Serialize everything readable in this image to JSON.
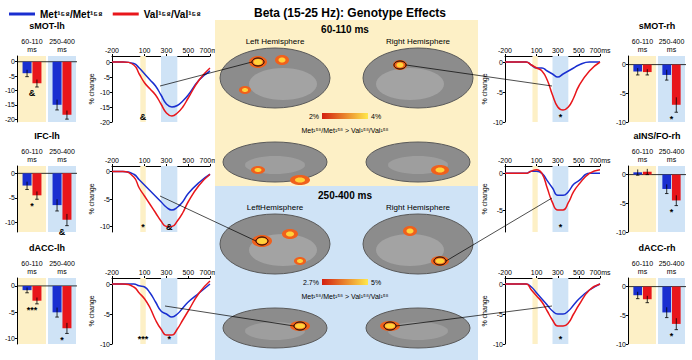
{
  "title": "Beta (15-25 Hz): Genotype Effects",
  "legend": "top-left",
  "windows": [
    {
      "from": 60,
      "to": 110,
      "color": "#fdf0c6"
    },
    {
      "from": 250,
      "to": 400,
      "color": "#cfe3f6"
    }
  ],
  "brain": {
    "bands": [
      {
        "label": "60-110 ms",
        "left": "Left Hemisphere",
        "right": "Right Hemisphere",
        "contrast": "Met¹⁵⁸/Met¹⁵⁸ > Val¹⁵⁸/Val¹⁵⁸",
        "colorbar": {
          "ticks": [
            {
              "value": 2,
              "label": "2%"
            },
            {
              "value": 4,
              "label": "4%"
            }
          ]
        }
      },
      {
        "label": "250-400 ms",
        "left": "LeftHemisphere",
        "right": "Right Hemisphere",
        "contrast": "Met¹⁵⁸/Met¹⁵⁸ > Val¹⁵⁸/Val¹⁵⁸",
        "colorbar": {
          "ticks": [
            {
              "value": 2.7,
              "label": "2.7%"
            },
            {
              "value": 5,
              "label": "5%"
            }
          ]
        }
      }
    ]
  },
  "chart_data": [
    {
      "type": "bar",
      "title": "sMOT-lh",
      "categories": [
        "60-110 ms",
        "250-400 ms"
      ],
      "series": [
        {
          "name": "Met¹⁵⁸/Met¹⁵⁸",
          "color": "#1a2fd0",
          "values": [
            -4,
            -15
          ],
          "errors": [
            1.2,
            1.8
          ]
        },
        {
          "name": "Val¹⁵⁸/Val¹⁵⁸",
          "color": "#e8161b",
          "values": [
            -7.5,
            -18.5
          ],
          "errors": [
            1.3,
            1.5
          ]
        }
      ],
      "ylim": [
        -21,
        2
      ],
      "yticks": [
        0,
        -5,
        -10,
        -15,
        -20
      ],
      "grid": false,
      "annotations": [
        {
          "category": "60-110 ms",
          "text": "&"
        }
      ]
    },
    {
      "type": "line",
      "x": [
        -200,
        -100,
        0,
        50,
        100,
        150,
        200,
        250,
        300,
        350,
        400,
        450,
        500,
        600,
        700
      ],
      "series": [
        {
          "name": "Met¹⁵⁸/Met¹⁵⁸",
          "color": "#1a2fd0",
          "values": [
            0,
            0,
            -0.5,
            -2,
            -4,
            -6,
            -8,
            -11,
            -14,
            -15,
            -14.5,
            -13,
            -11,
            -6,
            -3
          ]
        },
        {
          "name": "Val¹⁵⁸/Val¹⁵⁸",
          "color": "#e8161b",
          "values": [
            0,
            0,
            -1,
            -4,
            -7,
            -9,
            -11,
            -14,
            -17,
            -18,
            -17,
            -15,
            -12,
            -6,
            -2
          ]
        }
      ],
      "xlim": [
        -200,
        700
      ],
      "xticks": [
        -200,
        100,
        300,
        500,
        {
          "value": 700,
          "label": "700ms"
        }
      ],
      "ylim": [
        -20,
        2
      ],
      "yticks": [
        0,
        -5,
        -10,
        -15,
        -20
      ],
      "ylabel": "% change",
      "grid": false,
      "annotations": [
        {
          "x": 85,
          "text": "&"
        }
      ]
    },
    {
      "type": "bar",
      "title": "IFC-lh",
      "categories": [
        "60-110 ms",
        "250-400 ms"
      ],
      "series": [
        {
          "name": "Met¹⁵⁸/Met¹⁵⁸",
          "color": "#1a2fd0",
          "values": [
            -2.5,
            -6.5
          ],
          "errors": [
            0.8,
            1.2
          ]
        },
        {
          "name": "Val¹⁵⁸/Val¹⁵⁸",
          "color": "#e8161b",
          "values": [
            -4.5,
            -9.5
          ],
          "errors": [
            0.8,
            1.2
          ]
        }
      ],
      "ylim": [
        -12,
        1.5
      ],
      "yticks": [
        0,
        -5,
        -10
      ],
      "grid": false,
      "annotations": [
        {
          "category": "60-110 ms",
          "text": "*"
        },
        {
          "category": "250-400 ms",
          "text": "&"
        }
      ]
    },
    {
      "type": "line",
      "x": [
        -200,
        -100,
        0,
        50,
        100,
        150,
        200,
        250,
        300,
        350,
        400,
        450,
        500,
        600,
        700
      ],
      "series": [
        {
          "name": "Met¹⁵⁸/Met¹⁵⁸",
          "color": "#1a2fd0",
          "values": [
            0,
            0,
            -0.5,
            -1.5,
            -2.5,
            -3.5,
            -4.5,
            -5.5,
            -6.5,
            -7,
            -6.5,
            -5.5,
            -4,
            -2,
            -0.5
          ]
        },
        {
          "name": "Val¹⁵⁸/Val¹⁵⁸",
          "color": "#e8161b",
          "values": [
            0,
            0,
            -1,
            -3,
            -4.5,
            -6,
            -7.5,
            -9,
            -10,
            -10,
            -9,
            -7.5,
            -5.5,
            -2.5,
            -0.5
          ]
        }
      ],
      "xlim": [
        -200,
        700
      ],
      "xticks": [
        -200,
        100,
        300,
        500,
        {
          "value": 700,
          "label": "700ms"
        }
      ],
      "ylim": [
        -11,
        1
      ],
      "yticks": [
        0,
        -5,
        -10
      ],
      "ylabel": "% change",
      "grid": false,
      "annotations": [
        {
          "x": 85,
          "text": "*"
        },
        {
          "x": 325,
          "text": "&"
        }
      ]
    },
    {
      "type": "bar",
      "title": "dACC-lh",
      "categories": [
        "60-110 ms",
        "250-400 ms"
      ],
      "series": [
        {
          "name": "Met¹⁵⁸/Met¹⁵⁸",
          "color": "#1a2fd0",
          "values": [
            -0.8,
            -5
          ],
          "errors": [
            0.5,
            0.9
          ]
        },
        {
          "name": "Val¹⁵⁸/Val¹⁵⁸",
          "color": "#e8161b",
          "values": [
            -2.8,
            -8
          ],
          "errors": [
            0.6,
            1
          ]
        }
      ],
      "ylim": [
        -11,
        1.5
      ],
      "yticks": [
        0,
        -5,
        -10
      ],
      "grid": false,
      "annotations": [
        {
          "category": "60-110 ms",
          "text": "***"
        },
        {
          "category": "250-400 ms",
          "text": "*"
        }
      ]
    },
    {
      "type": "line",
      "x": [
        -200,
        -100,
        0,
        50,
        100,
        150,
        200,
        250,
        300,
        350,
        400,
        450,
        500,
        600,
        700
      ],
      "series": [
        {
          "name": "Met¹⁵⁸/Met¹⁵⁸",
          "color": "#1a2fd0",
          "values": [
            0,
            0,
            0,
            -0.3,
            -0.5,
            -1.5,
            -3,
            -4.5,
            -5,
            -5.5,
            -5,
            -4,
            -3,
            -1.5,
            0
          ]
        },
        {
          "name": "Val¹⁵⁸/Val¹⁵⁸",
          "color": "#e8161b",
          "values": [
            0,
            0,
            -0.5,
            -1.5,
            -2.5,
            -4,
            -6,
            -7.5,
            -8.5,
            -8.5,
            -7.5,
            -6,
            -4.5,
            -1.5,
            0.5
          ]
        }
      ],
      "xlim": [
        -200,
        700
      ],
      "xticks": [
        -200,
        100,
        300,
        500,
        {
          "value": 700,
          "label": "700ms"
        }
      ],
      "ylim": [
        -10,
        1
      ],
      "yticks": [
        0,
        -5,
        -10
      ],
      "ylabel": "% change",
      "grid": false,
      "annotations": [
        {
          "x": 85,
          "text": "***"
        },
        {
          "x": 325,
          "text": "*"
        }
      ]
    },
    {
      "type": "bar",
      "title": "sMOT-rh",
      "categories": [
        "60-110 ms",
        "250-400 ms"
      ],
      "series": [
        {
          "name": "Met¹⁵⁸/Met¹⁵⁸",
          "color": "#1a2fd0",
          "values": [
            -1.2,
            -1.8
          ],
          "errors": [
            0.6,
            0.9
          ]
        },
        {
          "name": "Val¹⁵⁸/Val¹⁵⁸",
          "color": "#e8161b",
          "values": [
            -1.3,
            -7
          ],
          "errors": [
            0.5,
            1.3
          ]
        }
      ],
      "ylim": [
        -10,
        1.5
      ],
      "yticks": [
        0,
        -5,
        -10
      ],
      "grid": false,
      "annotations": [
        {
          "category": "250-400 ms",
          "text": "*"
        }
      ]
    },
    {
      "type": "line",
      "x": [
        -200,
        -100,
        0,
        50,
        100,
        150,
        200,
        250,
        300,
        350,
        400,
        450,
        500,
        600,
        700
      ],
      "series": [
        {
          "name": "Met¹⁵⁸/Met¹⁵⁸",
          "color": "#1a2fd0",
          "values": [
            0,
            0,
            0,
            -0.5,
            -1,
            -1,
            -1.5,
            -2,
            -2.5,
            -2,
            -1.5,
            -1,
            -0.5,
            0,
            0
          ]
        },
        {
          "name": "Val¹⁵⁸/Val¹⁵⁸",
          "color": "#e8161b",
          "values": [
            0,
            0,
            0,
            -0.5,
            -1,
            -1.5,
            -3,
            -5.5,
            -7.5,
            -8,
            -7.5,
            -6,
            -4,
            -1.5,
            0
          ]
        }
      ],
      "xlim": [
        -200,
        700
      ],
      "xticks": [
        -200,
        100,
        300,
        500,
        {
          "value": 700,
          "label": "700ms"
        }
      ],
      "ylim": [
        -10,
        1
      ],
      "yticks": [
        0,
        -5,
        -10
      ],
      "ylabel": "% change",
      "grid": false,
      "annotations": [
        {
          "x": 325,
          "text": "*"
        }
      ]
    },
    {
      "type": "bar",
      "title": "aINS/FO-rh",
      "categories": [
        "60-110 ms",
        "250-400 ms"
      ],
      "series": [
        {
          "name": "Met¹⁵⁸/Met¹⁵⁸",
          "color": "#1a2fd0",
          "values": [
            0.4,
            -2.5
          ],
          "errors": [
            0.5,
            0.8
          ]
        },
        {
          "name": "Val¹⁵⁸/Val¹⁵⁸",
          "color": "#e8161b",
          "values": [
            0.5,
            -4.5
          ],
          "errors": [
            0.5,
            0.9
          ]
        }
      ],
      "ylim": [
        -10,
        1.5
      ],
      "yticks": [
        0,
        -5,
        -10
      ],
      "grid": false,
      "annotations": [
        {
          "category": "250-400 ms",
          "text": "*"
        }
      ]
    },
    {
      "type": "line",
      "x": [
        -200,
        -100,
        0,
        50,
        100,
        150,
        200,
        250,
        300,
        350,
        400,
        450,
        500,
        600,
        700
      ],
      "series": [
        {
          "name": "Met¹⁵⁸/Met¹⁵⁸",
          "color": "#1a2fd0",
          "values": [
            0,
            0,
            0,
            0.3,
            0.3,
            0,
            -1,
            -2,
            -3,
            -3,
            -2.5,
            -1.5,
            -1,
            0,
            0
          ]
        },
        {
          "name": "Val¹⁵⁸/Val¹⁵⁸",
          "color": "#e8161b",
          "values": [
            0,
            0,
            0,
            0.3,
            0.5,
            0,
            -2,
            -4,
            -5,
            -5,
            -4,
            -2.5,
            -1.5,
            0,
            0.5
          ]
        }
      ],
      "xlim": [
        -200,
        700
      ],
      "xticks": [
        -200,
        100,
        300,
        500,
        {
          "value": 700,
          "label": "700ms"
        }
      ],
      "ylim": [
        -8,
        1
      ],
      "yticks": [
        0,
        -5
      ],
      "ylabel": "% change",
      "grid": false,
      "annotations": [
        {
          "x": 325,
          "text": "*"
        }
      ]
    },
    {
      "type": "bar",
      "title": "dACC-rh",
      "categories": [
        "60-110 ms",
        "250-400 ms"
      ],
      "series": [
        {
          "name": "Met¹⁵⁸/Met¹⁵⁸",
          "color": "#1a2fd0",
          "values": [
            -1.5,
            -4.5
          ],
          "errors": [
            0.6,
            0.9
          ]
        },
        {
          "name": "Val¹⁵⁸/Val¹⁵⁸",
          "color": "#e8161b",
          "values": [
            -2.2,
            -6.5
          ],
          "errors": [
            0.6,
            1
          ]
        }
      ],
      "ylim": [
        -10,
        1.5
      ],
      "yticks": [
        0,
        -5,
        -10
      ],
      "grid": false,
      "annotations": [
        {
          "category": "250-400 ms",
          "text": "*"
        }
      ]
    },
    {
      "type": "line",
      "x": [
        -200,
        -100,
        0,
        50,
        100,
        150,
        200,
        250,
        300,
        350,
        400,
        450,
        500,
        600,
        700
      ],
      "series": [
        {
          "name": "Met¹⁵⁸/Met¹⁵⁸",
          "color": "#1a2fd0",
          "values": [
            0,
            0,
            0,
            -0.5,
            -1.5,
            -2.5,
            -3.5,
            -4.5,
            -5,
            -5,
            -4.5,
            -3.5,
            -2.5,
            -1,
            0
          ]
        },
        {
          "name": "Val¹⁵⁸/Val¹⁵⁸",
          "color": "#e8161b",
          "values": [
            0,
            0,
            0,
            -1,
            -2,
            -3,
            -4.5,
            -6,
            -7,
            -7,
            -6.5,
            -5,
            -3.5,
            -1,
            0
          ]
        }
      ],
      "xlim": [
        -200,
        700
      ],
      "xticks": [
        -200,
        100,
        300,
        500,
        {
          "value": 700,
          "label": "700ms"
        }
      ],
      "ylim": [
        -10,
        1
      ],
      "yticks": [
        0,
        -5,
        -10
      ],
      "ylabel": "% change",
      "grid": false,
      "annotations": [
        {
          "x": 325,
          "text": "*"
        }
      ]
    }
  ]
}
